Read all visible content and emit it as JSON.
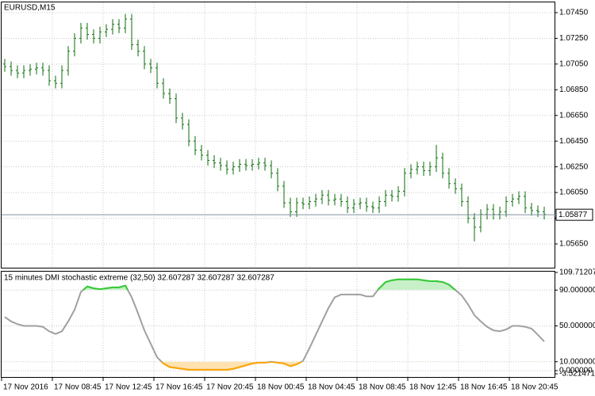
{
  "chart_data": [
    {
      "type": "ohlc",
      "title": "EURUSD,M15",
      "color": "#0b6e0b",
      "grid": true,
      "ylim": [
        1.05465,
        1.07536
      ],
      "yticks": [
        {
          "value": 1.0745,
          "label": "1.07450"
        },
        {
          "value": 1.0725,
          "label": "1.07250"
        },
        {
          "value": 1.0705,
          "label": "1.07050"
        },
        {
          "value": 1.0685,
          "label": "1.06850"
        },
        {
          "value": 1.0665,
          "label": "1.06650"
        },
        {
          "value": 1.0645,
          "label": "1.06450"
        },
        {
          "value": 1.0625,
          "label": "1.06250"
        },
        {
          "value": 1.0605,
          "label": "1.06050"
        },
        {
          "value": 1.0585,
          "label": "1.05850"
        },
        {
          "value": 1.0565,
          "label": "1.05650"
        }
      ],
      "last_price": 1.05877,
      "x_tick_labels": [
        "17 Nov 2016",
        "17 Nov 08:45",
        "17 Nov 12:45",
        "17 Nov 16:45",
        "17 Nov 20:45",
        "18 Nov 00:45",
        "18 Nov 04:45",
        "18 Nov 08:45",
        "18 Nov 12:45",
        "18 Nov 16:45",
        "18 Nov 20:45"
      ],
      "open": [
        1.0705,
        1.0703,
        1.07,
        1.0698,
        1.07,
        1.0701,
        1.0702,
        1.07,
        1.0692,
        1.069,
        1.07,
        1.0715,
        1.0725,
        1.0733,
        1.0728,
        1.0725,
        1.073,
        1.0732,
        1.0736,
        1.0733,
        1.074,
        1.072,
        1.0715,
        1.0705,
        1.0702,
        1.069,
        1.0682,
        1.0678,
        1.0663,
        1.0658,
        1.0645,
        1.0638,
        1.0634,
        1.063,
        1.0628,
        1.0626,
        1.0623,
        1.0625,
        1.0627,
        1.0626,
        1.0627,
        1.0628,
        1.0626,
        1.062,
        1.061,
        1.0597,
        1.059,
        1.0597,
        1.0596,
        1.0598,
        1.06,
        1.0603,
        1.0599,
        1.06,
        1.0598,
        1.0593,
        1.0596,
        1.0597,
        1.0594,
        1.0593,
        1.0598,
        1.0603,
        1.0602,
        1.0606,
        1.062,
        1.0623,
        1.0625,
        1.0622,
        1.0625,
        1.0632,
        1.062,
        1.0612,
        1.0608,
        1.0598,
        1.0585,
        1.0578,
        1.0588,
        1.0592,
        1.0588,
        1.059,
        1.0598,
        1.06,
        1.0602,
        1.0593,
        1.0591,
        1.059
      ],
      "high": [
        1.0709,
        1.0707,
        1.0704,
        1.0704,
        1.0705,
        1.0706,
        1.0706,
        1.0704,
        1.0696,
        1.0704,
        1.0719,
        1.0729,
        1.0737,
        1.0737,
        1.0732,
        1.0734,
        1.0736,
        1.074,
        1.074,
        1.0744,
        1.0744,
        1.0724,
        1.0719,
        1.0709,
        1.0706,
        1.0694,
        1.0686,
        1.0682,
        1.0667,
        1.0662,
        1.0649,
        1.0642,
        1.0638,
        1.0634,
        1.0632,
        1.063,
        1.0629,
        1.0631,
        1.0631,
        1.0631,
        1.0632,
        1.0632,
        1.063,
        1.0624,
        1.0614,
        1.0601,
        1.0601,
        1.0601,
        1.0602,
        1.0604,
        1.0607,
        1.0607,
        1.0604,
        1.0604,
        1.0602,
        1.06,
        1.0601,
        1.0601,
        1.0598,
        1.0602,
        1.0607,
        1.0607,
        1.061,
        1.0624,
        1.0627,
        1.0629,
        1.0629,
        1.0629,
        1.0642,
        1.0636,
        1.0624,
        1.0616,
        1.0612,
        1.0602,
        1.0589,
        1.0592,
        1.0596,
        1.0596,
        1.0594,
        1.0602,
        1.0604,
        1.0606,
        1.0606,
        1.0597,
        1.0595,
        1.0594
      ],
      "low": [
        1.0699,
        1.0696,
        1.0694,
        1.0694,
        1.0696,
        1.0697,
        1.0696,
        1.0688,
        1.0686,
        1.0686,
        1.0696,
        1.0711,
        1.0721,
        1.0724,
        1.0721,
        1.0721,
        1.0726,
        1.0728,
        1.0729,
        1.0729,
        1.0716,
        1.0711,
        1.0701,
        1.0698,
        1.0686,
        1.0678,
        1.0674,
        1.0659,
        1.0654,
        1.0641,
        1.0634,
        1.063,
        1.0626,
        1.0624,
        1.0622,
        1.0619,
        1.0619,
        1.0621,
        1.0622,
        1.0622,
        1.0623,
        1.0622,
        1.0616,
        1.0606,
        1.0593,
        1.0586,
        1.0586,
        1.0592,
        1.0592,
        1.0594,
        1.0596,
        1.0595,
        1.0595,
        1.0594,
        1.0589,
        1.0589,
        1.0592,
        1.059,
        1.0589,
        1.0589,
        1.0594,
        1.0598,
        1.0598,
        1.0602,
        1.0616,
        1.0619,
        1.0618,
        1.0618,
        1.0621,
        1.0616,
        1.0608,
        1.0604,
        1.0594,
        1.0581,
        1.0567,
        1.0574,
        1.0584,
        1.0584,
        1.0584,
        1.0586,
        1.0594,
        1.0596,
        1.0589,
        1.0587,
        1.0586,
        1.0584
      ],
      "close": [
        1.0703,
        1.07,
        1.0698,
        1.07,
        1.0701,
        1.0702,
        1.07,
        1.0692,
        1.069,
        1.07,
        1.0715,
        1.0725,
        1.0733,
        1.0728,
        1.0725,
        1.073,
        1.0732,
        1.0736,
        1.0733,
        1.074,
        1.072,
        1.0715,
        1.0705,
        1.0702,
        1.069,
        1.0682,
        1.0678,
        1.0663,
        1.0658,
        1.0645,
        1.0638,
        1.0634,
        1.063,
        1.0628,
        1.0626,
        1.0623,
        1.0625,
        1.0627,
        1.0626,
        1.0627,
        1.0628,
        1.0626,
        1.062,
        1.061,
        1.0597,
        1.059,
        1.0597,
        1.0596,
        1.0598,
        1.06,
        1.0603,
        1.0599,
        1.06,
        1.0598,
        1.0593,
        1.0596,
        1.0597,
        1.0594,
        1.0593,
        1.0598,
        1.0603,
        1.0602,
        1.0606,
        1.062,
        1.0623,
        1.0625,
        1.0622,
        1.0625,
        1.0632,
        1.062,
        1.0612,
        1.0608,
        1.0598,
        1.0585,
        1.0578,
        1.0588,
        1.0592,
        1.0588,
        1.059,
        1.0598,
        1.06,
        1.0602,
        1.0593,
        1.0591,
        1.059,
        1.0588
      ]
    },
    {
      "type": "line",
      "title": "15 minutes DMI stochastic extreme (32,50) 32.607287 32.607287 32.607287",
      "ylim": [
        -3.521471,
        109.712074
      ],
      "yticks": [
        109.712074,
        {
          "value": 90,
          "label": "90.000000"
        },
        {
          "value": 50,
          "label": "50.000000"
        },
        {
          "value": 10,
          "label": "10.000000"
        },
        {
          "value": 0,
          "label": "0.000000"
        },
        -3.521471
      ],
      "color": "#a0a0a0",
      "upper_color": "#33cc33",
      "lower_color": "#ffa500",
      "upper_fill": "#c8f0c8",
      "lower_fill": "#ffe2b0",
      "upper_level": 90,
      "lower_level": 10,
      "values": [
        60,
        55,
        52,
        50,
        50,
        50,
        49,
        44,
        41,
        44,
        55,
        68,
        88,
        94,
        92,
        91,
        92,
        93,
        93,
        95,
        82,
        64,
        45,
        30,
        15,
        8,
        4,
        3,
        2,
        1,
        1,
        1,
        1,
        1,
        1,
        1,
        2,
        4,
        6,
        8,
        9,
        9,
        10,
        9,
        8,
        5,
        7,
        11,
        25,
        40,
        55,
        70,
        82,
        85,
        85,
        85,
        85,
        83,
        83,
        92,
        99,
        101,
        102,
        102,
        102,
        102,
        101,
        100,
        100,
        99,
        96,
        90,
        84,
        74,
        62,
        55,
        49,
        45,
        44,
        46,
        50,
        50,
        49,
        47,
        40,
        32.607287
      ]
    }
  ]
}
